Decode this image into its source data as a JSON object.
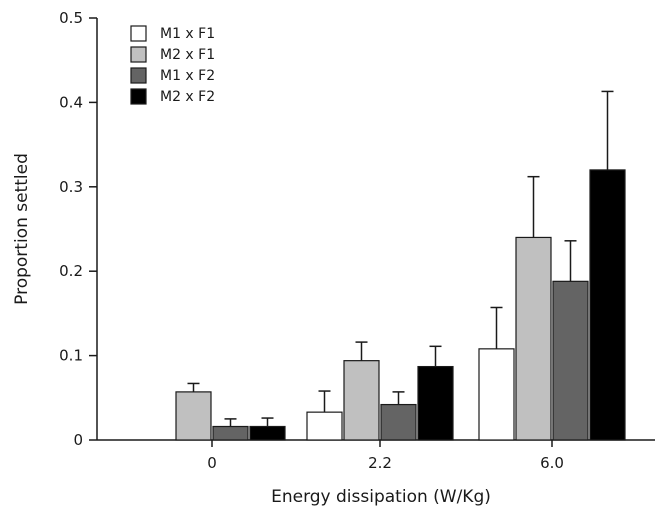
{
  "chart_data": {
    "type": "bar",
    "xlabel": "Energy dissipation (W/Kg)",
    "ylabel": "Proportion settled",
    "ylim": [
      0,
      0.5
    ],
    "yticks": [
      "0",
      "0.1",
      "0.2",
      "0.3",
      "0.4",
      "0.5"
    ],
    "categories": [
      "0",
      "2.2",
      "6.0"
    ],
    "legend_position": "top-left",
    "grid": false,
    "series": [
      {
        "name": "M1 x F1",
        "color": "#ffffff",
        "values": [
          0,
          0.033,
          0.108
        ],
        "errors": [
          0,
          0.025,
          0.049
        ]
      },
      {
        "name": "M2 x F1",
        "color": "#c0c0c0",
        "values": [
          0.057,
          0.094,
          0.24
        ],
        "errors": [
          0.01,
          0.022,
          0.072
        ]
      },
      {
        "name": "M1 x F2",
        "color": "#646464",
        "values": [
          0.016,
          0.042,
          0.188
        ],
        "errors": [
          0.009,
          0.015,
          0.048
        ]
      },
      {
        "name": "M2 x F2",
        "color": "#000000",
        "values": [
          0.016,
          0.087,
          0.32
        ],
        "errors": [
          0.01,
          0.024,
          0.093
        ]
      }
    ]
  }
}
